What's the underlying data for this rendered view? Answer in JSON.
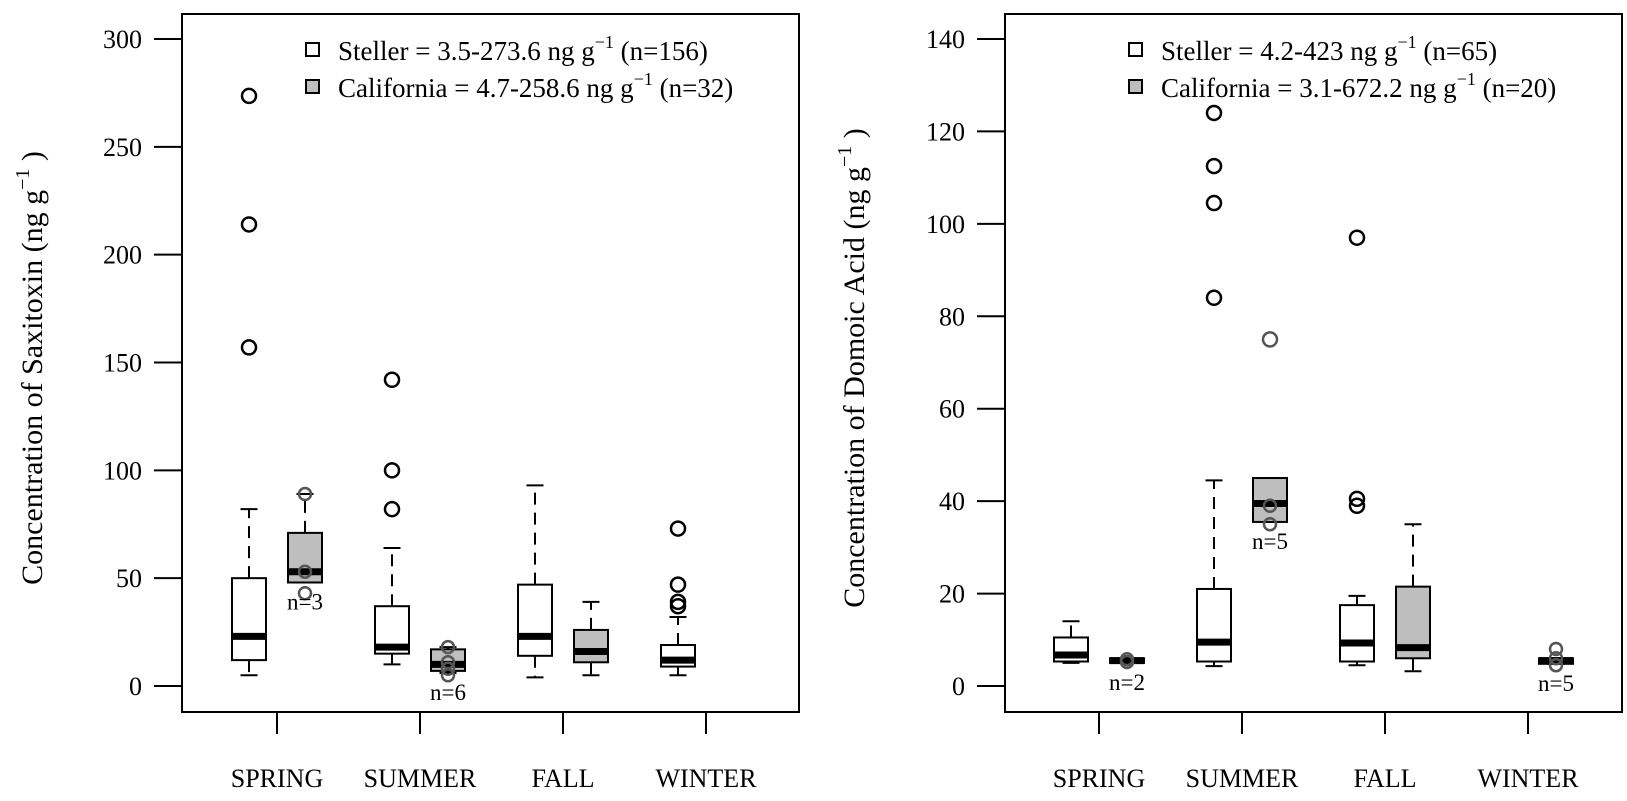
{
  "chart_data": [
    {
      "type": "boxplot",
      "ylabel": "Concentration of Saxitoxin (ng g",
      "ylabel_sup": "−1",
      "ylabel_close": " )",
      "ylim": [
        0,
        300
      ],
      "yticks": [
        0,
        50,
        100,
        150,
        200,
        250,
        300
      ],
      "categories": [
        "SPRING",
        "SUMMER",
        "FALL",
        "WINTER"
      ],
      "legend_position": "top-right",
      "series": [
        {
          "name": "Steller",
          "legend": {
            "prefix": "Steller = 3.5-273.6 ng g",
            "sup": "−1",
            "suffix": " (n=156)"
          },
          "fill": "#ffffff",
          "boxes": [
            {
              "category": "SPRING",
              "whisker_low": 5,
              "q1": 12,
              "median": 23,
              "q3": 50,
              "whisker_high": 82,
              "outliers": [
                157,
                214,
                273.6
              ]
            },
            {
              "category": "SUMMER",
              "whisker_low": 10,
              "q1": 15,
              "median": 18,
              "q3": 37,
              "whisker_high": 64,
              "outliers": [
                82,
                100,
                142
              ]
            },
            {
              "category": "FALL",
              "whisker_low": 4,
              "q1": 14,
              "median": 23,
              "q3": 47,
              "whisker_high": 93,
              "outliers": []
            },
            {
              "category": "WINTER",
              "whisker_low": 5,
              "q1": 9,
              "median": 12,
              "q3": 19,
              "whisker_high": 32,
              "outliers": [
                37,
                39,
                47,
                73
              ]
            }
          ]
        },
        {
          "name": "California",
          "legend": {
            "prefix": "California = 4.7-258.6 ng g",
            "sup": "−1",
            "suffix": " (n=32)"
          },
          "fill": "#bebebe",
          "boxes": [
            {
              "category": "SPRING",
              "whisker_low": 48,
              "q1": 48,
              "median": 53,
              "q3": 71,
              "whisker_high": 89,
              "outliers": [],
              "points": [
                43,
                53,
                89
              ],
              "n_label": "n=3"
            },
            {
              "category": "SUMMER",
              "whisker_low": 6,
              "q1": 7,
              "median": 10,
              "q3": 17,
              "whisker_high": 18,
              "outliers": [],
              "points": [
                5,
                8,
                11,
                18
              ],
              "n_label": "n=6"
            },
            {
              "category": "FALL",
              "whisker_low": 5,
              "q1": 11,
              "median": 16,
              "q3": 26,
              "whisker_high": 39,
              "outliers": []
            },
            {
              "category": "WINTER",
              "hidden": true
            }
          ]
        }
      ]
    },
    {
      "type": "boxplot",
      "ylabel": "Concentration of Domoic Acid (ng g",
      "ylabel_sup": "−1",
      "ylabel_close": " )",
      "ylim": [
        0,
        140
      ],
      "yticks": [
        0,
        20,
        40,
        60,
        80,
        100,
        120,
        140
      ],
      "categories": [
        "SPRING",
        "SUMMER",
        "FALL",
        "WINTER"
      ],
      "legend_position": "top-right",
      "series": [
        {
          "name": "Steller",
          "legend": {
            "prefix": "Steller = 4.2-423 ng g",
            "sup": "−1",
            "suffix": " (n=65)"
          },
          "fill": "#ffffff",
          "boxes": [
            {
              "category": "SPRING",
              "whisker_low": 5,
              "q1": 5.3,
              "median": 6.7,
              "q3": 10.5,
              "whisker_high": 14,
              "outliers": []
            },
            {
              "category": "SUMMER",
              "whisker_low": 4.3,
              "q1": 5.3,
              "median": 9.5,
              "q3": 21,
              "whisker_high": 44.5,
              "outliers": [
                84,
                104.5,
                112.5,
                124
              ]
            },
            {
              "category": "FALL",
              "whisker_low": 4.5,
              "q1": 5.3,
              "median": 9.3,
              "q3": 17.5,
              "whisker_high": 19.5,
              "outliers": [
                39,
                40.5,
                97
              ]
            },
            {
              "category": "WINTER",
              "hidden": true
            }
          ]
        },
        {
          "name": "California",
          "legend": {
            "prefix": "California = 3.1-672.2 ng g",
            "sup": "−1",
            "suffix": " (n=20)"
          },
          "fill": "#bebebe",
          "boxes": [
            {
              "category": "SPRING",
              "whisker_low": 5,
              "q1": 5,
              "median": 5.5,
              "q3": 6,
              "whisker_high": 6,
              "outliers": [],
              "points": [
                5.2,
                5.8
              ],
              "n_label": "n=2"
            },
            {
              "category": "SUMMER",
              "whisker_low": 35.5,
              "q1": 35.5,
              "median": 39.5,
              "q3": 45,
              "whisker_high": 45,
              "outliers": [
                75
              ],
              "points": [
                35,
                39
              ],
              "n_label": "n=5"
            },
            {
              "category": "FALL",
              "whisker_low": 3.2,
              "q1": 6,
              "median": 8.3,
              "q3": 21.5,
              "whisker_high": 35,
              "outliers": []
            },
            {
              "category": "WINTER",
              "whisker_low": 4.8,
              "q1": 4.8,
              "median": 5.5,
              "q3": 6,
              "whisker_high": 6,
              "outliers": [],
              "points": [
                4.5,
                6,
                8
              ],
              "n_label": "n=5"
            }
          ]
        }
      ]
    }
  ]
}
